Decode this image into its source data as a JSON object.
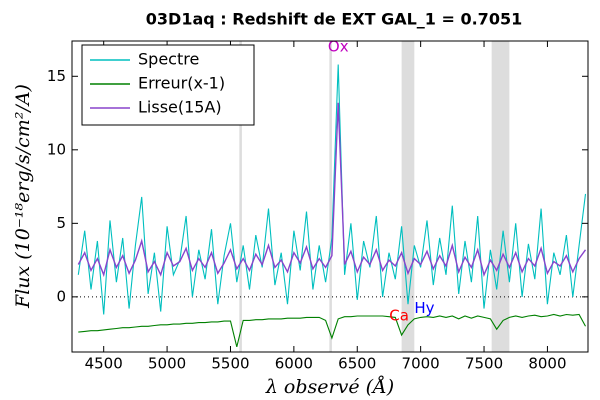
{
  "chart_data": {
    "type": "line",
    "title": "03D1aq : Redshift de EXT GAL_1 = 0.7051",
    "x_label": "λ observé (Å)",
    "y_label": "Flux (10⁻¹⁸erg/s/cm²/A)",
    "x": [
      4300,
      4350,
      4400,
      4450,
      4500,
      4550,
      4600,
      4650,
      4700,
      4750,
      4800,
      4850,
      4900,
      4950,
      5000,
      5050,
      5100,
      5150,
      5200,
      5250,
      5300,
      5350,
      5400,
      5450,
      5500,
      5550,
      5600,
      5650,
      5700,
      5750,
      5800,
      5850,
      5900,
      5950,
      6000,
      6050,
      6100,
      6150,
      6200,
      6250,
      6300,
      6350,
      6400,
      6450,
      6500,
      6550,
      6600,
      6650,
      6700,
      6750,
      6800,
      6850,
      6900,
      6950,
      7000,
      7050,
      7100,
      7150,
      7200,
      7250,
      7300,
      7350,
      7400,
      7450,
      7500,
      7550,
      7600,
      7650,
      7700,
      7750,
      7800,
      7850,
      7900,
      7950,
      8000,
      8050,
      8100,
      8150,
      8200,
      8250,
      8300
    ],
    "series": [
      {
        "name": "Spectre",
        "color": "#00bfbf",
        "values": [
          1.5,
          4.5,
          0.5,
          3.8,
          -1.2,
          5.2,
          1.0,
          4.0,
          -0.8,
          3.5,
          6.8,
          0.2,
          3.0,
          -1.0,
          4.8,
          1.5,
          2.5,
          5.5,
          0.0,
          3.2,
          1.2,
          4.6,
          -0.5,
          2.8,
          5.0,
          1.0,
          3.5,
          0.5,
          4.2,
          2.0,
          6.0,
          0.8,
          3.0,
          -0.5,
          4.5,
          1.8,
          5.8,
          0.5,
          3.5,
          1.0,
          4.0,
          15.8,
          1.5,
          5.0,
          -0.2,
          3.8,
          2.0,
          5.5,
          0.0,
          3.0,
          1.2,
          4.8,
          -0.5,
          3.5,
          2.0,
          5.2,
          0.8,
          4.0,
          1.5,
          6.2,
          0.2,
          3.8,
          1.0,
          5.5,
          -0.8,
          3.2,
          0.5,
          4.5,
          1.0,
          5.0,
          0.0,
          3.6,
          1.2,
          6.0,
          -0.5,
          3.0,
          1.5,
          4.2,
          0.0,
          3.5,
          7.0
        ]
      },
      {
        "name": "Erreur(x-1)",
        "color": "#008000",
        "values": [
          -2.4,
          -2.35,
          -2.3,
          -2.3,
          -2.25,
          -2.2,
          -2.15,
          -2.1,
          -2.1,
          -2.05,
          -2.0,
          -2.0,
          -1.95,
          -1.9,
          -1.9,
          -1.85,
          -1.85,
          -1.8,
          -1.8,
          -1.75,
          -1.75,
          -1.7,
          -1.7,
          -1.65,
          -1.65,
          -3.4,
          -1.6,
          -1.6,
          -1.55,
          -1.55,
          -1.5,
          -1.5,
          -1.5,
          -1.45,
          -1.45,
          -1.45,
          -1.4,
          -1.4,
          -1.4,
          -1.6,
          -2.8,
          -1.5,
          -1.35,
          -1.35,
          -1.3,
          -1.3,
          -1.3,
          -1.3,
          -1.3,
          -1.35,
          -1.4,
          -2.6,
          -1.9,
          -1.5,
          -1.4,
          -1.35,
          -1.4,
          -1.3,
          -1.4,
          -1.3,
          -1.5,
          -1.3,
          -1.45,
          -1.3,
          -1.4,
          -1.5,
          -2.2,
          -1.6,
          -1.4,
          -1.3,
          -1.4,
          -1.3,
          -1.25,
          -1.35,
          -1.3,
          -1.2,
          -1.3,
          -1.2,
          -1.25,
          -1.2,
          -2.0
        ]
      },
      {
        "name": "Lisse(15A)",
        "color": "#8844cc",
        "values": [
          2.2,
          3.0,
          1.8,
          2.6,
          1.5,
          3.2,
          2.0,
          2.8,
          1.6,
          2.5,
          3.8,
          1.7,
          2.4,
          1.5,
          3.0,
          2.1,
          2.4,
          3.3,
          1.8,
          2.6,
          2.0,
          3.0,
          1.6,
          2.3,
          3.2,
          1.9,
          2.6,
          1.8,
          2.9,
          2.2,
          3.5,
          2.0,
          2.5,
          1.7,
          3.0,
          2.3,
          3.4,
          1.9,
          2.6,
          2.0,
          2.8,
          13.2,
          2.2,
          3.1,
          1.7,
          2.7,
          2.2,
          3.2,
          1.8,
          2.5,
          2.1,
          3.0,
          1.6,
          2.6,
          2.2,
          3.1,
          1.9,
          2.8,
          2.1,
          3.5,
          1.7,
          2.7,
          2.0,
          3.2,
          1.5,
          2.5,
          1.8,
          2.9,
          2.0,
          3.0,
          1.7,
          2.6,
          2.1,
          3.3,
          1.6,
          2.4,
          2.1,
          2.8,
          1.7,
          2.6,
          3.2
        ]
      }
    ],
    "annotations": [
      {
        "text": "Ox",
        "x": 6350,
        "y": 17.0,
        "color": "#bf00bf"
      },
      {
        "text": "Ca",
        "x": 6830,
        "y": -1.3,
        "color": "#ff0000"
      },
      {
        "text": "Hy",
        "x": 7030,
        "y": -0.8,
        "color": "#0000ff"
      }
    ],
    "bands": [
      [
        5570,
        5590
      ],
      [
        6280,
        6300
      ],
      [
        6850,
        6950
      ],
      [
        7560,
        7700
      ]
    ],
    "xlim": [
      4250,
      8320
    ],
    "ylim": [
      -3.75,
      17.4
    ],
    "xticks": [
      4500,
      5000,
      5500,
      6000,
      6500,
      7000,
      7500,
      8000
    ],
    "yticks": [
      0,
      5,
      10,
      15
    ],
    "zero_line": true,
    "legend": "upper left"
  }
}
